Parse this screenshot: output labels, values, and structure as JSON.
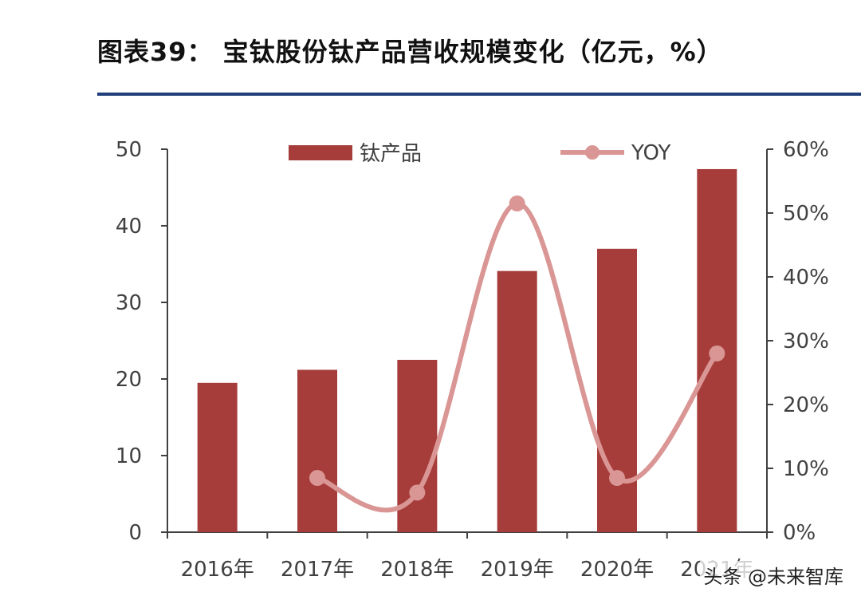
{
  "header": {
    "title": "图表39：  宝钛股份钛产品营收规模变化（亿元，%）"
  },
  "colors": {
    "bar": "#a63d3a",
    "line": "#d99694",
    "rule": "#1f3e7a",
    "axis": "#404040"
  },
  "watermark": "头条 @未来智库",
  "chart_data": {
    "type": "bar",
    "categories": [
      "2016年",
      "2017年",
      "2018年",
      "2019年",
      "2020年",
      "2021年"
    ],
    "series": [
      {
        "name": "钛产品",
        "type": "bar",
        "axis": "left",
        "values": [
          19.5,
          21.2,
          22.5,
          34.1,
          37.0,
          47.4
        ]
      },
      {
        "name": "YOY",
        "type": "line",
        "axis": "right",
        "smooth": true,
        "markers": true,
        "values": [
          null,
          8.5,
          6.2,
          51.5,
          8.5,
          28.0
        ]
      }
    ],
    "y_left": {
      "min": 0,
      "max": 50,
      "ticks": [
        "0",
        "10",
        "20",
        "30",
        "40",
        "50"
      ]
    },
    "y_right": {
      "min": 0,
      "max": 60,
      "ticks": [
        "0%",
        "10%",
        "20%",
        "30%",
        "40%",
        "50%",
        "60%"
      ]
    },
    "legend": {
      "position": "top",
      "items": [
        "钛产品",
        "YOY"
      ]
    },
    "grid": false
  }
}
